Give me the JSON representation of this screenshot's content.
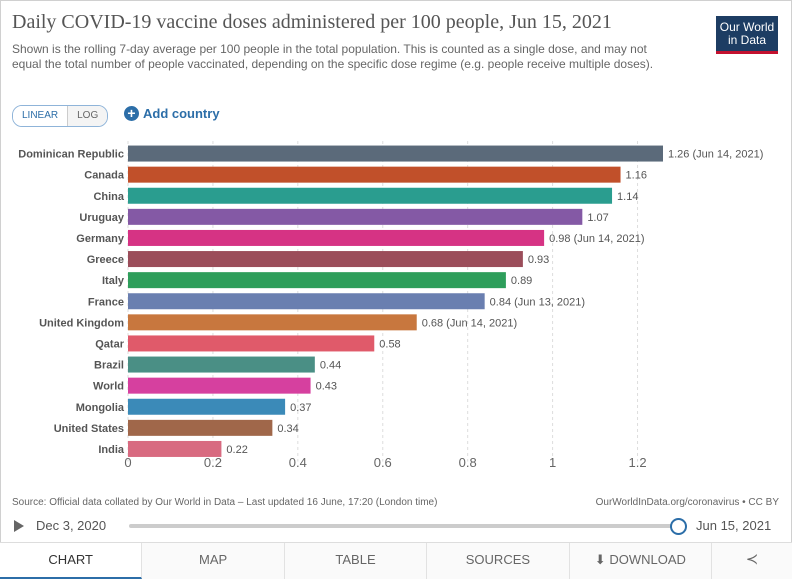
{
  "header": {
    "title": "Daily COVID-19 vaccine doses administered per 100 people, Jun 15, 2021",
    "subtitle": "Shown is the rolling 7-day average per 100 people in the total population. This is counted as a single dose, and may not equal the total number of people vaccinated, depending on the specific dose regime (e.g. people receive multiple doses).",
    "logo_line1": "Our World",
    "logo_line2": "in Data"
  },
  "controls": {
    "linear_label": "LINEAR",
    "log_label": "LOG",
    "add_country_label": "Add country",
    "plus_glyph": "+"
  },
  "chart_data": {
    "type": "bar",
    "orientation": "horizontal",
    "title": "Daily COVID-19 vaccine doses administered per 100 people, Jun 15, 2021",
    "categories": [
      "Dominican Republic",
      "Canada",
      "China",
      "Uruguay",
      "Germany",
      "Greece",
      "Italy",
      "France",
      "United Kingdom",
      "Qatar",
      "Brazil",
      "World",
      "Mongolia",
      "United States",
      "India"
    ],
    "values": [
      1.26,
      1.16,
      1.14,
      1.07,
      0.98,
      0.93,
      0.89,
      0.84,
      0.68,
      0.58,
      0.44,
      0.43,
      0.37,
      0.34,
      0.22
    ],
    "value_labels": [
      "1.26 (Jun 14, 2021)",
      "1.16",
      "1.14",
      "1.07",
      "0.98 (Jun 14, 2021)",
      "0.93",
      "0.89",
      "0.84 (Jun 13, 2021)",
      "0.68 (Jun 14, 2021)",
      "0.58",
      "0.44",
      "0.43",
      "0.37",
      "0.34",
      "0.22"
    ],
    "colors": [
      "#5b6a7a",
      "#c1502a",
      "#2a9d8f",
      "#8459a5",
      "#d63384",
      "#9b4d5a",
      "#2e9e5b",
      "#6a7fb0",
      "#c8773e",
      "#e05a6a",
      "#4a8f85",
      "#d6409f",
      "#3b8ab8",
      "#a0674a",
      "#d86a80"
    ],
    "xticks": [
      0,
      0.2,
      0.4,
      0.6,
      0.8,
      1,
      1.2
    ],
    "xtick_labels": [
      "0",
      "0.2",
      "0.4",
      "0.6",
      "0.8",
      "1",
      "1.2"
    ],
    "xlim": [
      0,
      1.26
    ],
    "xlabel": "",
    "ylabel": "",
    "grid": "vertical dashed"
  },
  "footer": {
    "source": "Source: Official data collated by Our World in Data – Last updated 16 June, 17:20 (London time)",
    "credit": "OurWorldInData.org/coronavirus • CC BY",
    "start_date": "Dec 3, 2020",
    "end_date": "Jun 15, 2021"
  },
  "tabs": {
    "chart": "CHART",
    "map": "MAP",
    "table": "TABLE",
    "sources": "SOURCES",
    "download": "DOWNLOAD",
    "download_glyph": "⬇",
    "share_glyph": "≺"
  }
}
